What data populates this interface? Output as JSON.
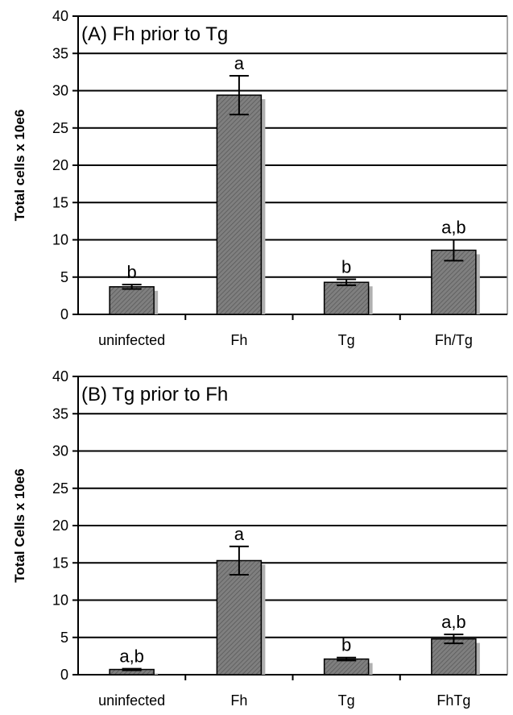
{
  "chart_data": [
    {
      "type": "bar",
      "title": "(A) Fh prior to Tg",
      "ylabel": "Total cells x 10e6",
      "xlabel": "",
      "ylim": [
        0,
        40
      ],
      "yticks": [
        0,
        5,
        10,
        15,
        20,
        25,
        30,
        35,
        40
      ],
      "grid": true,
      "categories": [
        "uninfected",
        "Fh",
        "Tg",
        "Fh/Tg"
      ],
      "values": [
        3.7,
        29.4,
        4.3,
        8.6
      ],
      "errors": [
        0.3,
        2.6,
        0.4,
        1.4
      ],
      "significance_labels": [
        "b",
        "a",
        "b",
        "a,b"
      ],
      "bar_color": "#7f7f7f"
    },
    {
      "type": "bar",
      "title": "(B) Tg prior to Fh",
      "ylabel": "Total Cells x 10e6",
      "xlabel": "",
      "ylim": [
        0,
        40
      ],
      "yticks": [
        0,
        5,
        10,
        15,
        20,
        25,
        30,
        35,
        40
      ],
      "grid": true,
      "categories": [
        "uninfected",
        "Fh",
        "Tg",
        "FhTg"
      ],
      "values": [
        0.7,
        15.3,
        2.1,
        4.8
      ],
      "errors": [
        0.1,
        1.9,
        0.2,
        0.6
      ],
      "significance_labels": [
        "a,b",
        "a",
        "b",
        "a,b"
      ],
      "bar_color": "#7f7f7f"
    }
  ]
}
